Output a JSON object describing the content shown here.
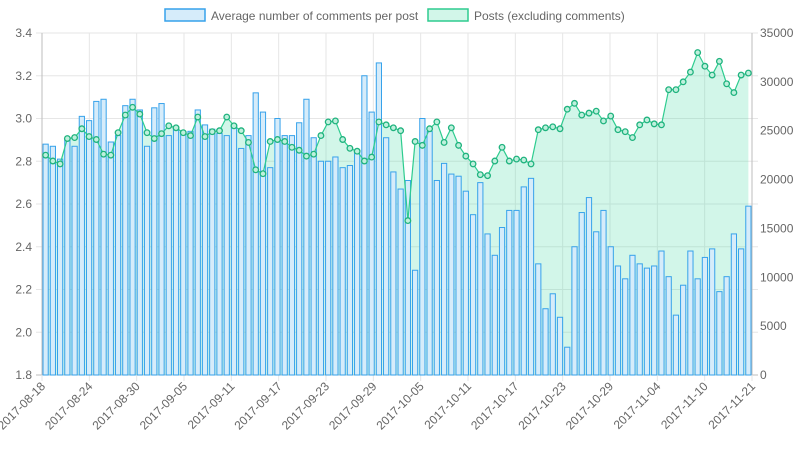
{
  "chart_data": {
    "type": "bar+line",
    "legend": {
      "placement": "top-center"
    },
    "grid": true,
    "series": [
      {
        "name": "Average number of comments per post",
        "kind": "bar",
        "axis": "left",
        "fill": "#d6ecfa",
        "stroke": "#36a2eb",
        "values": [
          2.88,
          2.87,
          2.81,
          2.9,
          2.87,
          3.01,
          2.99,
          3.08,
          3.09,
          2.89,
          2.92,
          3.06,
          3.09,
          3.04,
          2.87,
          3.05,
          3.07,
          2.92,
          2.96,
          2.93,
          2.94,
          3.04,
          2.97,
          2.95,
          2.93,
          2.92,
          2.97,
          2.86,
          2.92,
          3.12,
          3.03,
          2.77,
          3.0,
          2.92,
          2.92,
          2.98,
          3.09,
          2.91,
          2.8,
          2.8,
          2.82,
          2.77,
          2.78,
          2.85,
          3.2,
          3.03,
          3.26,
          2.91,
          2.75,
          2.67,
          2.71,
          2.29,
          3.0,
          2.94,
          2.71,
          2.79,
          2.74,
          2.73,
          2.66,
          2.55,
          2.7,
          2.46,
          2.36,
          2.49,
          2.57,
          2.57,
          2.68,
          2.72,
          2.32,
          2.11,
          2.18,
          2.07,
          1.93,
          2.4,
          2.56,
          2.63,
          2.47,
          2.57,
          2.4,
          2.31,
          2.25,
          2.36,
          2.32,
          2.3,
          2.31,
          2.38,
          2.26,
          2.08,
          2.22,
          2.38,
          2.25,
          2.35,
          2.39,
          2.19,
          2.26,
          2.46,
          2.39,
          2.59
        ]
      },
      {
        "name": "Posts (excluding comments)",
        "kind": "line",
        "axis": "right",
        "fill": "rgba(75,218,168,0.25)",
        "stroke": "#2ecc8f",
        "values": [
          22500,
          21900,
          21600,
          24200,
          24300,
          25200,
          24400,
          24100,
          22600,
          22500,
          24800,
          26600,
          27400,
          26700,
          24800,
          24200,
          24700,
          25500,
          25300,
          24800,
          24500,
          26400,
          24400,
          24900,
          25000,
          26400,
          25500,
          25000,
          23800,
          21000,
          20600,
          23900,
          24100,
          23900,
          23300,
          23000,
          22400,
          22600,
          24500,
          25900,
          26000,
          24100,
          23200,
          22900,
          21900,
          22300,
          25900,
          25600,
          25300,
          25000,
          15800,
          23900,
          23500,
          25200,
          25900,
          23800,
          25300,
          23500,
          22400,
          21600,
          20500,
          20400,
          21900,
          23300,
          21900,
          22100,
          22000,
          21600,
          25100,
          25300,
          25400,
          25200,
          27200,
          27800,
          26600,
          26800,
          27000,
          26000,
          26500,
          25100,
          24900,
          24300,
          25600,
          26100,
          25700,
          25600,
          29200,
          29200,
          30000,
          31000,
          33000,
          31600,
          30700,
          32100,
          29800,
          28900,
          30700,
          30900
        ]
      }
    ],
    "x_ticks": [
      "2017-08-18",
      "2017-08-24",
      "2017-08-30",
      "2017-09-05",
      "2017-09-11",
      "2017-09-17",
      "2017-09-23",
      "2017-09-29",
      "2017-10-05",
      "2017-10-11",
      "2017-10-17",
      "2017-10-23",
      "2017-10-29",
      "2017-11-04",
      "2017-11-10",
      "2017-11-21"
    ],
    "y_left": {
      "min": 1.8,
      "max": 3.4,
      "ticks": [
        "3.4",
        "3.2",
        "3.0",
        "2.8",
        "2.6",
        "2.4",
        "2.2",
        "2.0",
        "1.8"
      ]
    },
    "y_right": {
      "min": 0,
      "max": 35000,
      "ticks": [
        "35000",
        "30000",
        "25000",
        "20000",
        "15000",
        "10000",
        "5000",
        "0"
      ]
    }
  }
}
